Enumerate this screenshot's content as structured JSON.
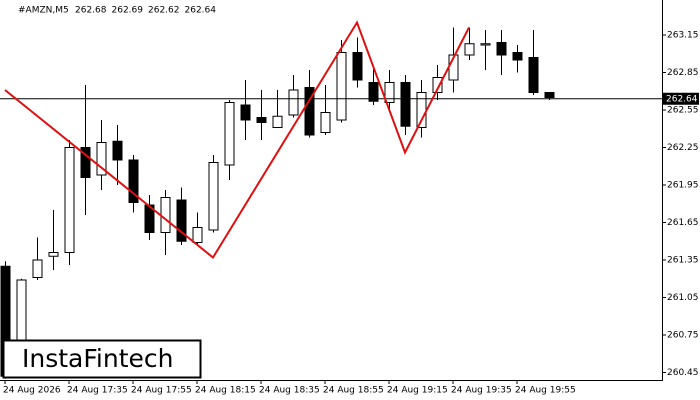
{
  "chart_data": {
    "type": "candlestick",
    "symbol": "#AMZN,M5",
    "header_values": [
      262.68,
      262.69,
      262.62,
      262.64
    ],
    "categories": [
      "24 Aug 2026",
      null,
      null,
      null,
      "24 Aug 17:35",
      null,
      null,
      null,
      "24 Aug 17:55",
      null,
      null,
      null,
      "24 Aug 18:15",
      null,
      null,
      null,
      "24 Aug 18:35",
      null,
      null,
      null,
      "24 Aug 18:55",
      null,
      null,
      null,
      "24 Aug 19:15",
      null,
      null,
      null,
      "24 Aug 19:35",
      null,
      null,
      null,
      "24 Aug 19:55",
      null,
      null
    ],
    "open": [
      261.3,
      260.71,
      261.21,
      261.38,
      261.41,
      262.25,
      262.03,
      262.3,
      262.15,
      261.79,
      261.57,
      261.83,
      261.49,
      261.59,
      262.11,
      262.59,
      262.49,
      262.41,
      262.51,
      262.73,
      262.37,
      262.47,
      263.01,
      262.77,
      262.61,
      262.77,
      262.41,
      262.69,
      262.79,
      262.99,
      263.07,
      263.09,
      263.01,
      262.97,
      262.69
    ],
    "high": [
      261.34,
      261.2,
      261.53,
      261.75,
      262.31,
      262.75,
      262.47,
      262.43,
      262.19,
      261.87,
      261.91,
      261.93,
      261.73,
      262.19,
      262.63,
      262.79,
      262.71,
      262.71,
      262.83,
      262.87,
      262.75,
      263.11,
      263.13,
      262.89,
      262.87,
      262.83,
      262.79,
      262.91,
      263.21,
      263.21,
      263.19,
      263.19,
      263.07,
      263.19,
      262.69
    ],
    "low": [
      260.4,
      260.7,
      261.19,
      261.27,
      261.31,
      261.71,
      261.91,
      261.95,
      261.73,
      261.51,
      261.39,
      261.47,
      261.47,
      261.57,
      261.99,
      262.31,
      262.31,
      262.43,
      262.49,
      262.33,
      262.35,
      262.45,
      262.73,
      262.59,
      262.55,
      262.35,
      262.33,
      262.63,
      262.69,
      262.95,
      262.87,
      262.83,
      262.85,
      262.67,
      262.63
    ],
    "close": [
      260.42,
      261.19,
      261.35,
      261.41,
      262.25,
      262.01,
      262.29,
      262.15,
      261.81,
      261.57,
      261.85,
      261.5,
      261.61,
      262.13,
      262.61,
      262.47,
      262.45,
      262.5,
      262.71,
      262.35,
      262.53,
      263.01,
      262.79,
      262.62,
      262.77,
      262.42,
      262.69,
      262.81,
      262.99,
      263.08,
      263.08,
      262.99,
      262.95,
      262.69,
      262.65
    ],
    "current_price": 262.64,
    "pattern": {
      "color": "#e01010",
      "index": [
        0,
        13,
        22,
        25,
        29
      ],
      "values": [
        262.71,
        261.37,
        263.25,
        262.21,
        263.21
      ]
    },
    "ylim": [
      260.39,
      263.43
    ],
    "yticks": [
      {
        "value": 260.45,
        "label": "260.45"
      },
      260.75,
      261.05,
      261.35,
      261.65,
      261.95,
      262.25,
      262.55,
      262.85,
      263.15
    ]
  },
  "watermark": "InstaFintech"
}
